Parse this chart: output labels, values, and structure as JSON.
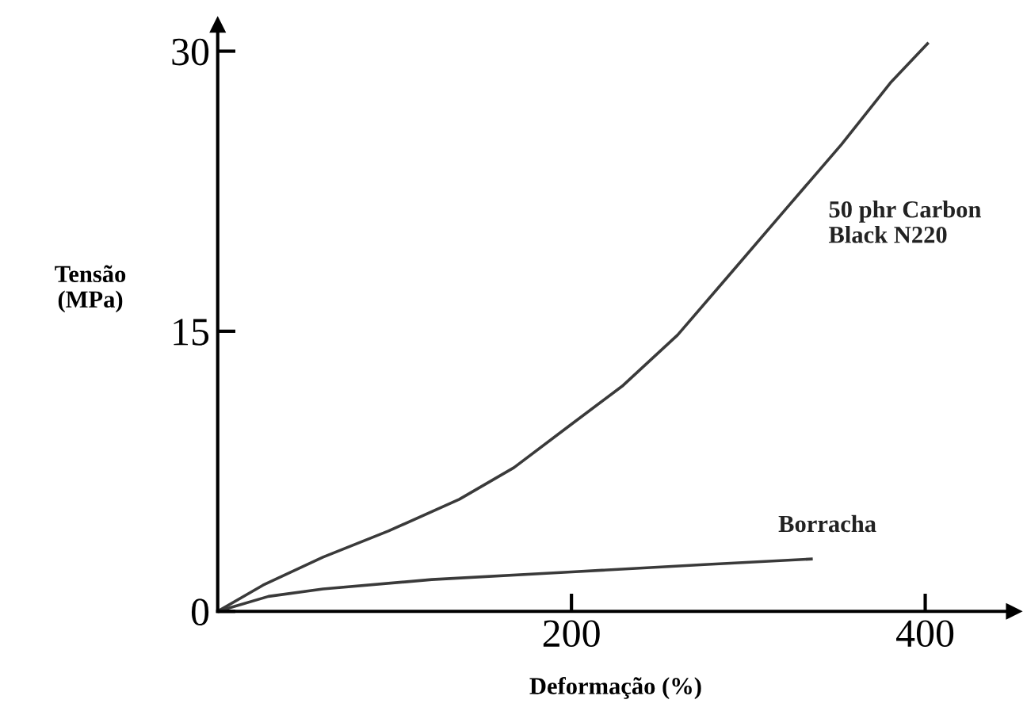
{
  "chart_data": {
    "type": "line",
    "xlabel": "Deformação (%)",
    "ylabel": "Tensão\n(MPa)",
    "xlim": [
      0,
      450
    ],
    "ylim": [
      0,
      31.4
    ],
    "xticks": [
      200,
      400
    ],
    "yticks": [
      0,
      15,
      30
    ],
    "grid": false,
    "legend": false,
    "marker": "none",
    "line_style": "solid",
    "series": [
      {
        "name": "50 phr Carbon\nBlack N220",
        "color": "#3a3a3a",
        "x": [
          0,
          25.6,
          59.5,
          96.5,
          136.6,
          167.5,
          198.3,
          229.2,
          260,
          290.9,
          321.7,
          352.6,
          380.3,
          401.3
        ],
        "values": [
          0,
          1.4,
          2.9,
          4.3,
          6.0,
          7.7,
          9.9,
          12.1,
          14.8,
          18.2,
          21.6,
          25.0,
          28.3,
          30.4
        ]
      },
      {
        "name": "Borracha",
        "color": "#3a3a3a",
        "x": [
          0,
          28.7,
          59.5,
          121,
          198,
          275,
          335.6
        ],
        "values": [
          0,
          0.8,
          1.2,
          1.7,
          2.1,
          2.5,
          2.8
        ]
      }
    ]
  }
}
